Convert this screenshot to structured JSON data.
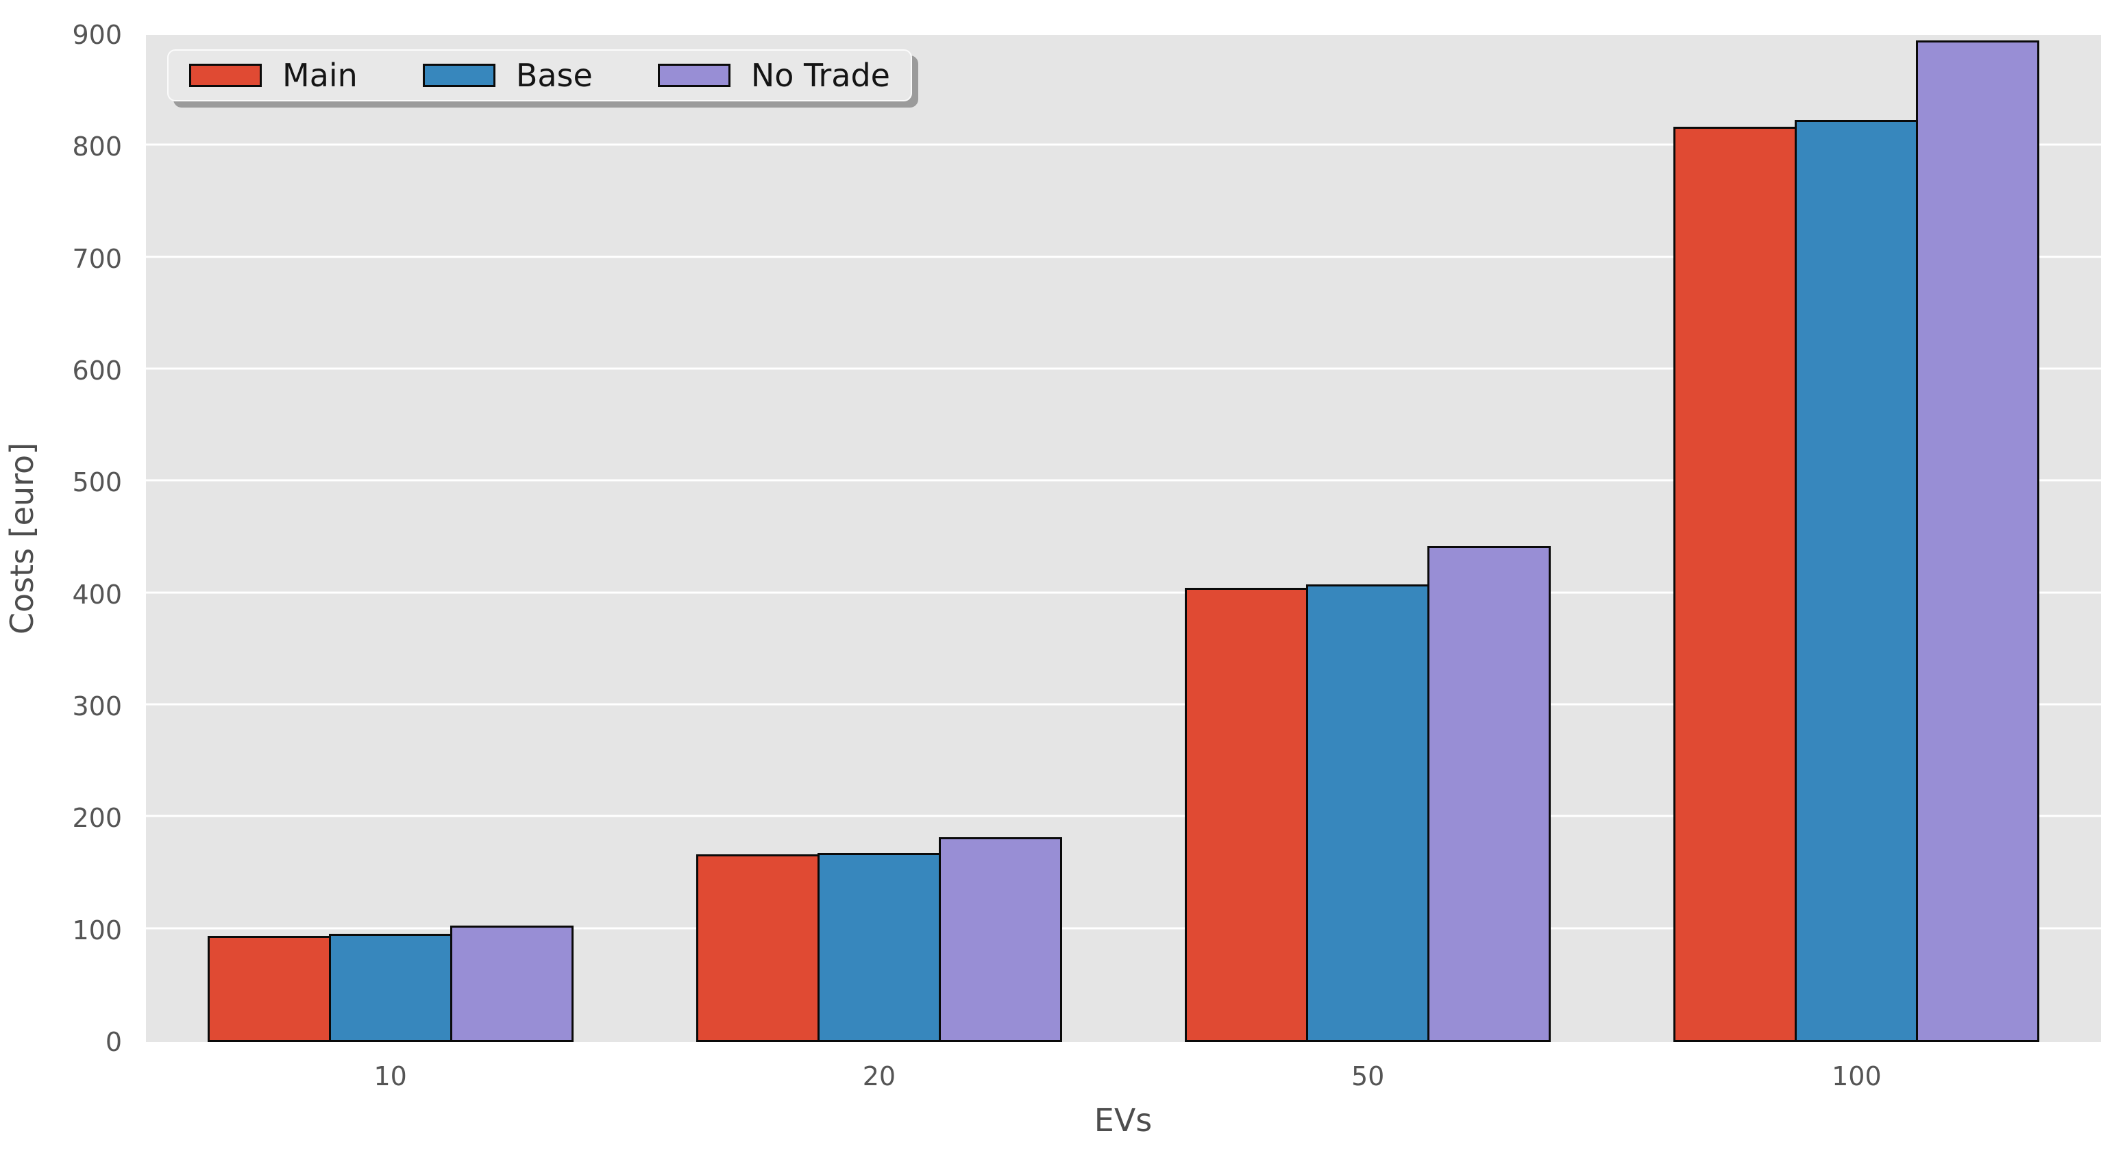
{
  "chart_data": {
    "type": "bar",
    "categories": [
      "10",
      "20",
      "50",
      "100"
    ],
    "series": [
      {
        "name": "Main",
        "color": "#E04A33",
        "values": [
          95,
          168,
          406,
          818
        ]
      },
      {
        "name": "Base",
        "color": "#3787BD",
        "values": [
          97,
          169,
          409,
          824
        ]
      },
      {
        "name": "No Trade",
        "color": "#988ED5",
        "values": [
          104,
          183,
          443,
          895
        ]
      }
    ],
    "title": "",
    "xlabel": "EVs",
    "ylabel": "Costs [euro]",
    "ylim": [
      0,
      900
    ],
    "y_ticks": [
      0,
      100,
      200,
      300,
      400,
      500,
      600,
      700,
      800,
      900
    ],
    "grid": true,
    "legend_position": "upper left",
    "style": {
      "plot_background": "#E5E5E5",
      "figure_background": "#FFFFFF",
      "gridline_color": "#FFFFFF",
      "bar_edge_color": "#0A0A0A",
      "tick_label_color": "#555555",
      "axis_label_color": "#4D4D4D",
      "legend_text_color": "#141414",
      "legend_background": "#E8E8E8",
      "legend_shadow_color": "#9B9B9B"
    }
  }
}
